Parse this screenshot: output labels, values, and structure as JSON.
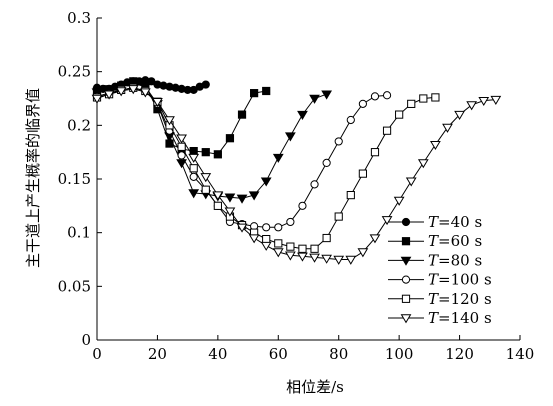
{
  "chart_data": {
    "type": "line",
    "title": "",
    "xlabel": "相位差/s",
    "ylabel": "主干道上产生概率的临界值",
    "xlim": [
      0,
      140
    ],
    "ylim": [
      0,
      0.3
    ],
    "xticks": [
      0,
      20,
      40,
      60,
      80,
      100,
      120,
      140
    ],
    "xtick_labels": [
      "0",
      "20",
      "40",
      "60",
      "80",
      "100",
      "120",
      "140"
    ],
    "yticks": [
      0,
      0.05,
      0.1,
      0.15,
      0.2,
      0.25,
      0.3
    ],
    "ytick_labels": [
      "0",
      "0.05",
      "0.1",
      "0.15",
      "0.2",
      "0.25",
      "0.3"
    ],
    "grid": false,
    "legend_position": "lower-right",
    "series": [
      {
        "name": "T=40 s",
        "label_var": "T",
        "label_rest": "=40 s",
        "marker": "circle-filled",
        "x": [
          0,
          2,
          4,
          6,
          8,
          10,
          12,
          14,
          16,
          18,
          20,
          22,
          24,
          26,
          28,
          30,
          32,
          34,
          36
        ],
        "y": [
          0.235,
          0.234,
          0.234,
          0.236,
          0.238,
          0.24,
          0.241,
          0.241,
          0.242,
          0.241,
          0.238,
          0.237,
          0.236,
          0.235,
          0.234,
          0.233,
          0.233,
          0.236,
          0.238
        ]
      },
      {
        "name": "T=60 s",
        "label_var": "T",
        "label_rest": "=60 s",
        "marker": "square-filled",
        "x": [
          0,
          4,
          8,
          12,
          16,
          20,
          24,
          28,
          32,
          36,
          40,
          44,
          48,
          52,
          56
        ],
        "y": [
          0.232,
          0.232,
          0.237,
          0.241,
          0.237,
          0.215,
          0.183,
          0.178,
          0.176,
          0.175,
          0.173,
          0.188,
          0.21,
          0.23,
          0.232
        ]
      },
      {
        "name": "T=80 s",
        "label_var": "T",
        "label_rest": "=80 s",
        "marker": "triangle-down-filled",
        "x": [
          0,
          4,
          8,
          12,
          16,
          20,
          24,
          28,
          32,
          36,
          40,
          44,
          48,
          52,
          56,
          60,
          64,
          68,
          72,
          76
        ],
        "y": [
          0.231,
          0.234,
          0.236,
          0.239,
          0.236,
          0.22,
          0.19,
          0.165,
          0.137,
          0.136,
          0.134,
          0.133,
          0.132,
          0.135,
          0.148,
          0.17,
          0.19,
          0.21,
          0.225,
          0.229
        ]
      },
      {
        "name": "T=100 s",
        "label_var": "T",
        "label_rest": "=100 s",
        "marker": "circle-open",
        "x": [
          0,
          4,
          8,
          12,
          16,
          20,
          24,
          28,
          32,
          36,
          40,
          44,
          48,
          52,
          56,
          60,
          64,
          68,
          72,
          76,
          80,
          84,
          88,
          92,
          96
        ],
        "y": [
          0.227,
          0.23,
          0.233,
          0.235,
          0.232,
          0.22,
          0.195,
          0.172,
          0.152,
          0.14,
          0.125,
          0.11,
          0.108,
          0.106,
          0.105,
          0.105,
          0.11,
          0.125,
          0.145,
          0.165,
          0.185,
          0.205,
          0.22,
          0.227,
          0.228
        ]
      },
      {
        "name": "T=120 s",
        "label_var": "T",
        "label_rest": "=120 s",
        "marker": "square-open",
        "x": [
          0,
          4,
          8,
          12,
          16,
          20,
          24,
          28,
          32,
          36,
          40,
          44,
          48,
          52,
          56,
          60,
          64,
          68,
          72,
          76,
          80,
          84,
          88,
          92,
          96,
          100,
          104,
          108,
          112
        ],
        "y": [
          0.226,
          0.229,
          0.233,
          0.235,
          0.232,
          0.222,
          0.2,
          0.18,
          0.16,
          0.14,
          0.125,
          0.115,
          0.107,
          0.1,
          0.094,
          0.09,
          0.087,
          0.085,
          0.085,
          0.095,
          0.115,
          0.135,
          0.155,
          0.175,
          0.195,
          0.21,
          0.22,
          0.225,
          0.226
        ]
      },
      {
        "name": "T=140 s",
        "label_var": "T",
        "label_rest": "=140 s",
        "marker": "triangle-down-open",
        "x": [
          0,
          4,
          8,
          12,
          16,
          20,
          24,
          28,
          32,
          36,
          40,
          44,
          48,
          52,
          56,
          60,
          64,
          68,
          72,
          76,
          80,
          84,
          88,
          92,
          96,
          100,
          104,
          108,
          112,
          116,
          120,
          124,
          128,
          132
        ],
        "y": [
          0.225,
          0.229,
          0.232,
          0.234,
          0.231,
          0.222,
          0.205,
          0.188,
          0.17,
          0.152,
          0.135,
          0.12,
          0.105,
          0.095,
          0.088,
          0.082,
          0.079,
          0.078,
          0.077,
          0.076,
          0.075,
          0.075,
          0.082,
          0.095,
          0.112,
          0.13,
          0.148,
          0.165,
          0.182,
          0.198,
          0.21,
          0.219,
          0.223,
          0.224
        ]
      }
    ]
  }
}
